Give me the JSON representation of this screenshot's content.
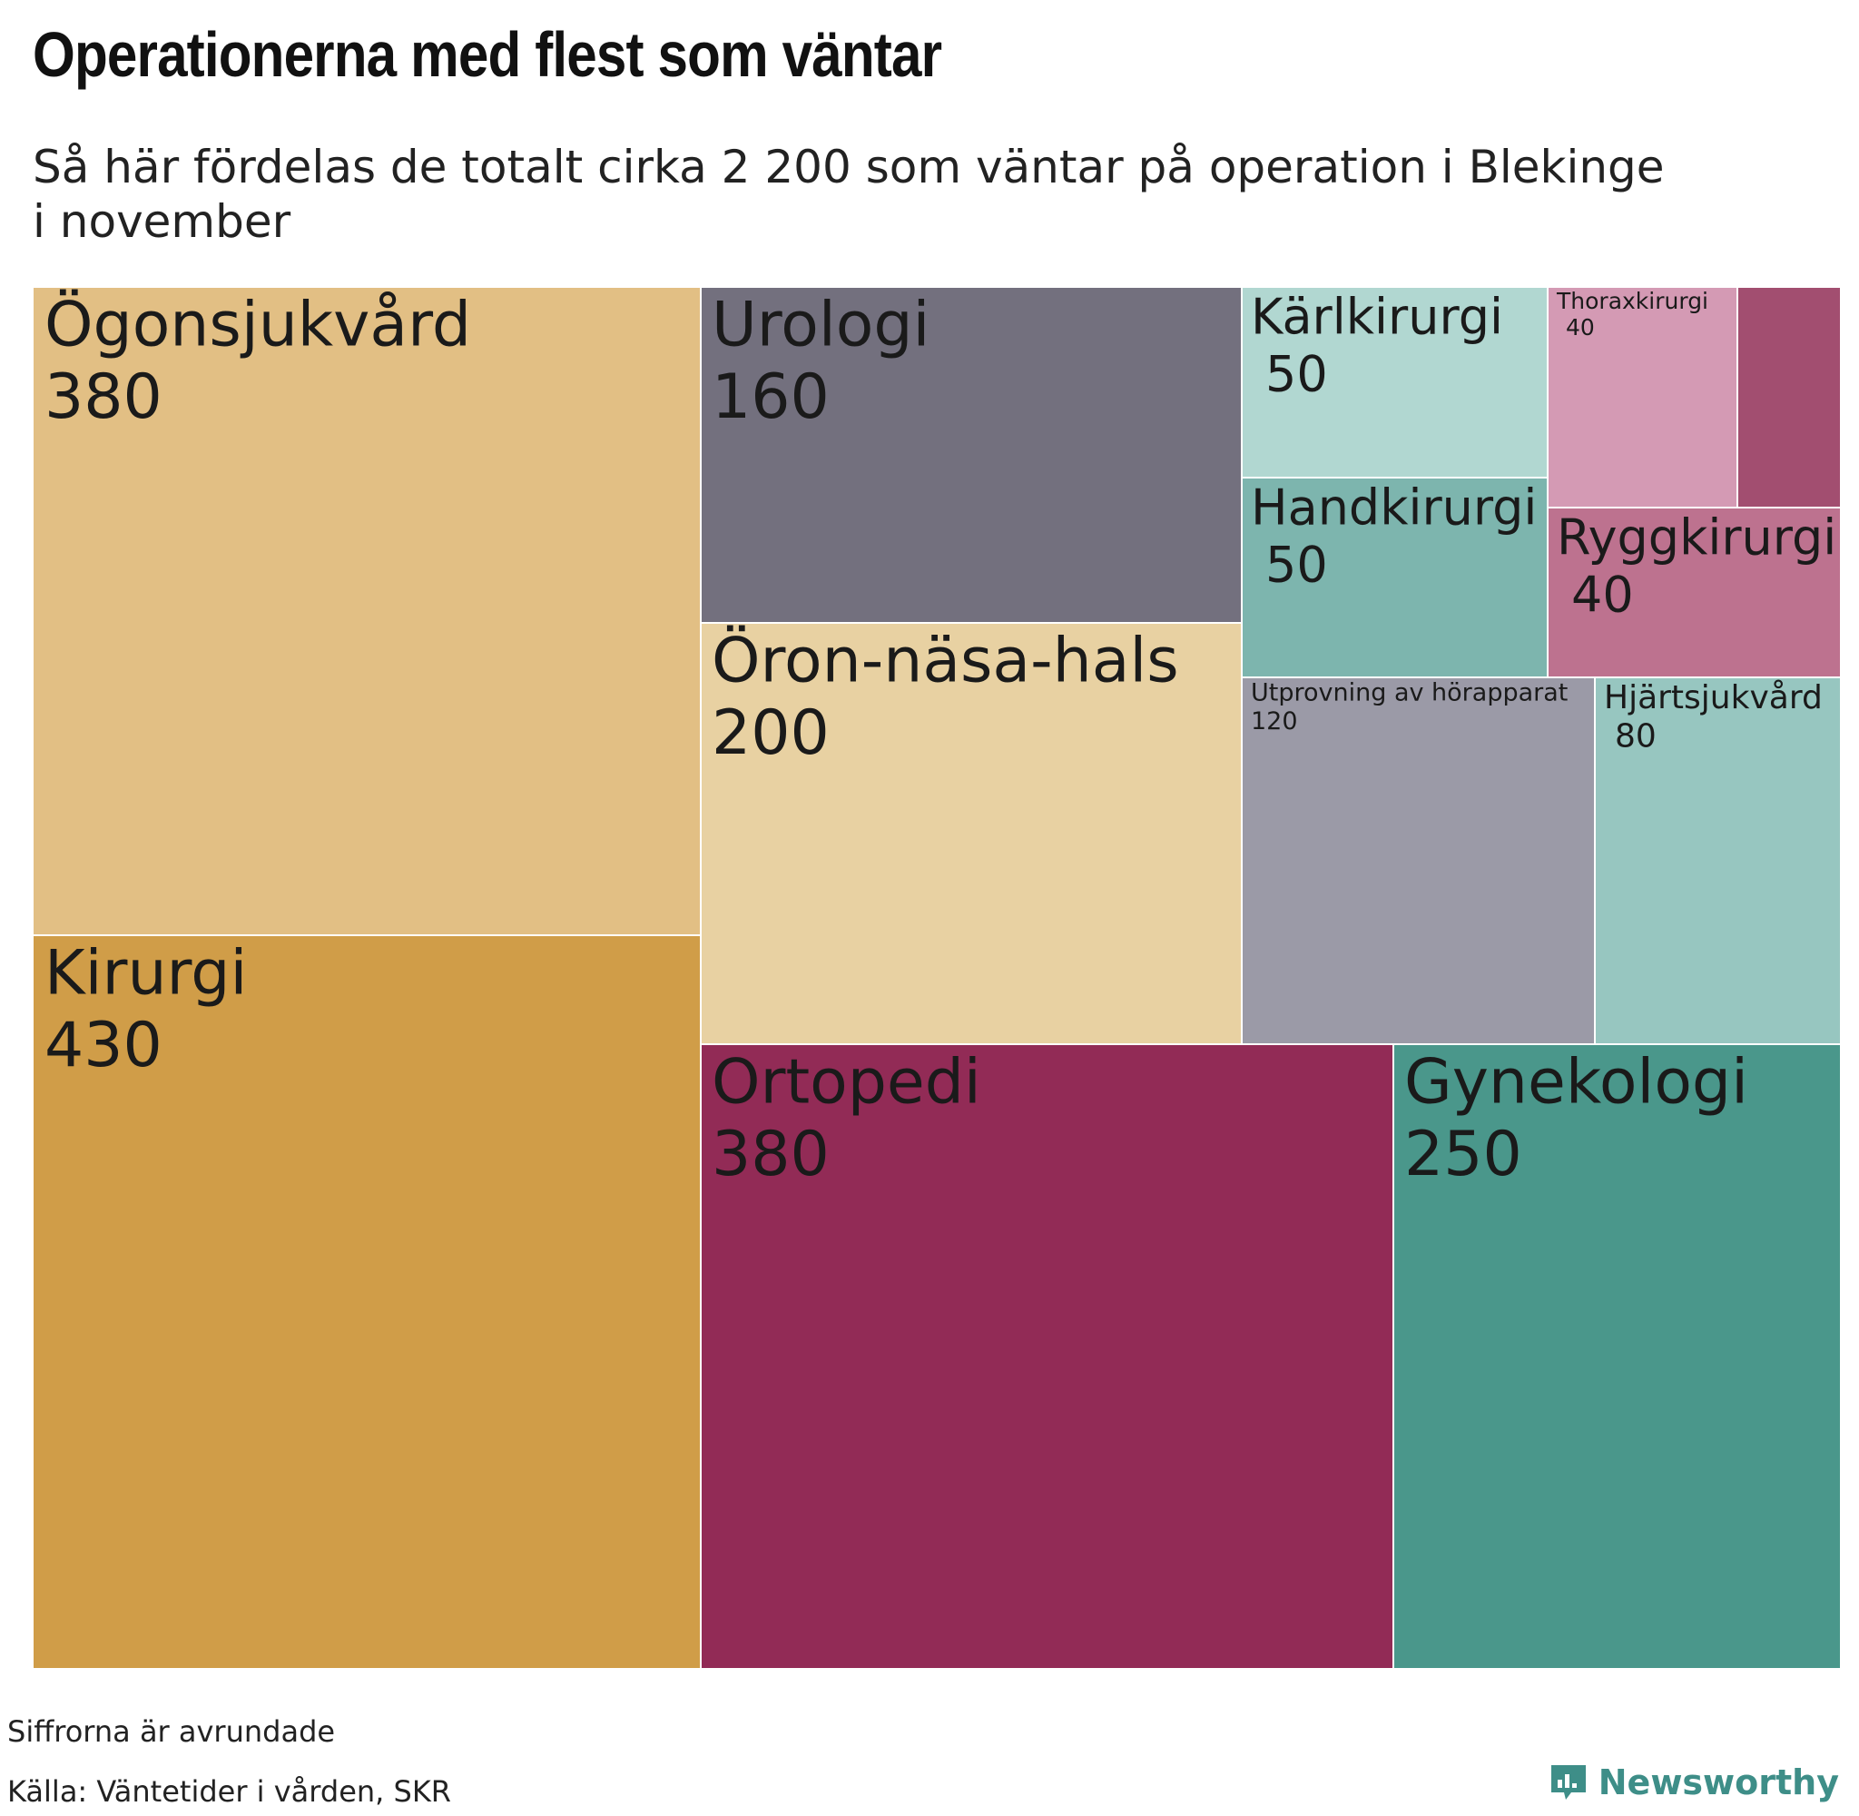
{
  "title": "Operationerna med flest som väntar",
  "subtitle": "Så här fördelas de totalt cirka 2 200 som väntar på operation i Blekinge i november",
  "footnote": "Siffrorna är avrundade",
  "source": "Källa: Väntetider i vården, SKR",
  "brand": "Newsworthy",
  "chart_data": {
    "type": "treemap",
    "title": "Operationerna med flest som väntar",
    "subtitle": "Så här fördelas de totalt cirka 2 200 som väntar på operation i Blekinge i november",
    "categories": [
      "Ögonsjukvård",
      "Kirurgi",
      "Urologi",
      "Öron-näsa-hals",
      "Ortopedi",
      "Gynekologi",
      "Kärlkirurgi",
      "Handkirurgi",
      "Thoraxkirurgi",
      "",
      "Ryggkirurgi",
      "Utprovning av hörapparat",
      "Hjärtsjukvård"
    ],
    "values": [
      380,
      430,
      160,
      200,
      380,
      250,
      50,
      50,
      40,
      null,
      40,
      120,
      80
    ],
    "value_labels": [
      "380",
      "430",
      "160",
      "200",
      "380",
      "250",
      "50",
      "50",
      "40",
      "",
      "40",
      "120",
      "80"
    ],
    "colors": [
      "#e2bf84",
      "#d09d48",
      "#73707e",
      "#e8d1a2",
      "#922b56",
      "#4a978b",
      "#b1d7d1",
      "#7db5ae",
      "#d49ab4",
      "#a24e70",
      "#bd728f",
      "#9b9aa7",
      "#97c6c0"
    ]
  }
}
